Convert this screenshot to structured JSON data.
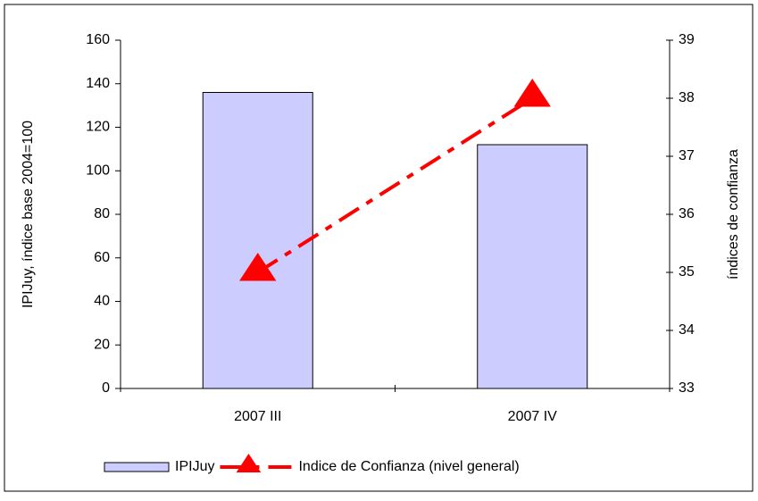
{
  "chart_data": {
    "type": "bar",
    "categories": [
      "2007 III",
      "2007 IV"
    ],
    "series": [
      {
        "name": "IPIJuy",
        "type": "bar",
        "color": "#ccccff",
        "values": [
          136,
          112
        ]
      },
      {
        "name": "Indice de Confianza (nivel general)",
        "type": "line",
        "axis": "y2",
        "color": "#ff0000",
        "values": [
          35.0,
          38.0
        ]
      }
    ],
    "y_label": "IPIJuy, índice base 2004=100",
    "y2_label": "índices de confianza",
    "ylim": [
      0,
      160
    ],
    "yticks": [
      0,
      20,
      40,
      60,
      80,
      100,
      120,
      140,
      160
    ],
    "y2lim": [
      33,
      39
    ],
    "y2ticks": [
      33,
      34,
      35,
      36,
      37,
      38,
      39
    ],
    "legend": "bottom"
  }
}
